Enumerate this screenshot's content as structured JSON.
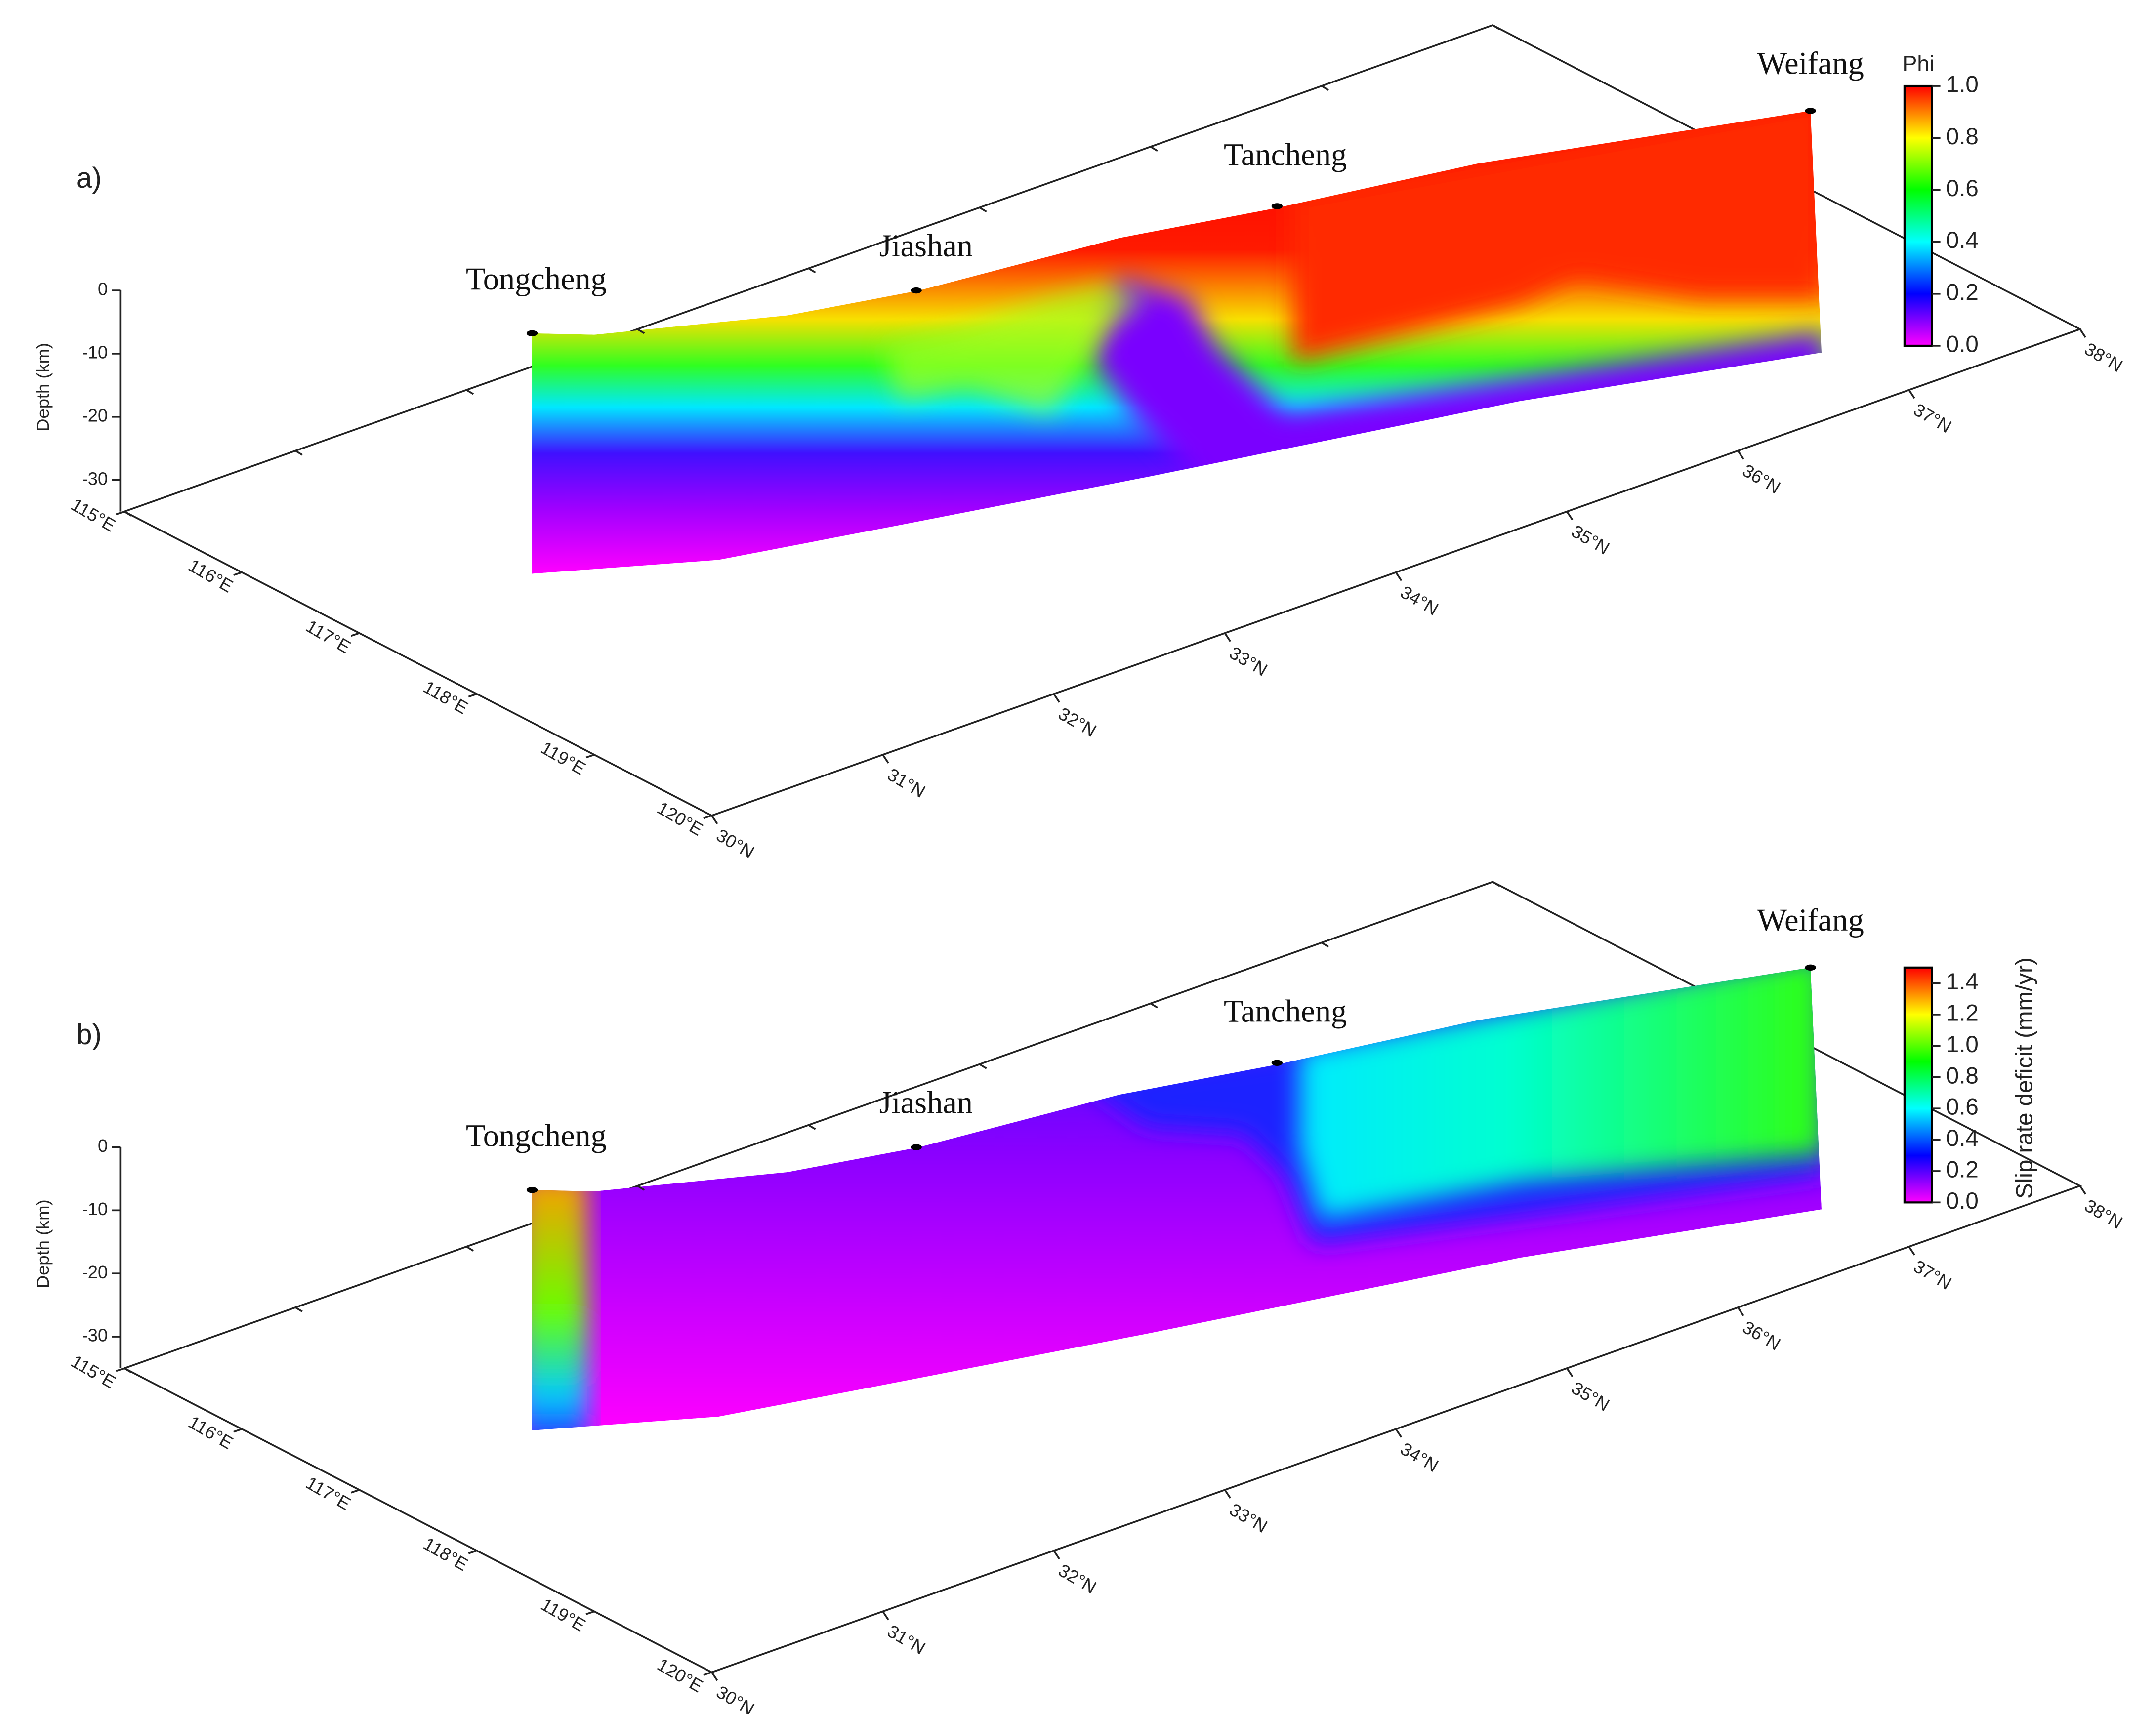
{
  "chart_data": [
    {
      "type": "fault-surface",
      "panel_label": "a)",
      "locations": [
        "Tongcheng",
        "Jiashan",
        "Tancheng",
        "Weifang"
      ],
      "colorbar_label": "Phi",
      "colormap": [
        "#ff00ff",
        "#0000ff",
        "#00ffff",
        "#00ff00",
        "#ffff00",
        "#ff0000"
      ],
      "clim": [
        0,
        1
      ],
      "cticks": [
        {
          "value": 0,
          "label": "0.0"
        },
        {
          "value": 0.2,
          "label": "0.2"
        },
        {
          "value": 0.4,
          "label": "0.4"
        },
        {
          "value": 0.6,
          "label": "0.6"
        },
        {
          "value": 0.8,
          "label": "0.8"
        },
        {
          "value": 1,
          "label": "1.0"
        }
      ],
      "zlabel": "Depth (km)",
      "zlim": [
        -35,
        0
      ],
      "zticks": [
        0,
        -10,
        -20,
        -30
      ],
      "xlim": [
        115,
        120
      ],
      "xticks": [
        {
          "value": 115,
          "label": "115°E"
        },
        {
          "value": 116,
          "label": "116°E"
        },
        {
          "value": 117,
          "label": "117°E"
        },
        {
          "value": 118,
          "label": "118°E"
        },
        {
          "value": 119,
          "label": "119°E"
        },
        {
          "value": 120,
          "label": "120°E"
        }
      ],
      "ylim": [
        30,
        38
      ],
      "yticks": [
        {
          "value": 30,
          "label": "30°N"
        },
        {
          "value": 31,
          "label": "31°N"
        },
        {
          "value": 32,
          "label": "32°N"
        },
        {
          "value": 33,
          "label": "33°N"
        },
        {
          "value": 34,
          "label": "34°N"
        },
        {
          "value": 35,
          "label": "35°N"
        },
        {
          "value": 36,
          "label": "36°N"
        },
        {
          "value": 37,
          "label": "37°N"
        },
        {
          "value": 38,
          "label": "38°N"
        }
      ]
    },
    {
      "type": "fault-surface",
      "panel_label": "b)",
      "locations": [
        "Tongcheng",
        "Jiashan",
        "Tancheng",
        "Weifang"
      ],
      "colorbar_label": "Slip rate deficit (mm/yr)",
      "colormap": [
        "#ff00ff",
        "#0000ff",
        "#00ffff",
        "#00ff00",
        "#ffff00",
        "#ff0000"
      ],
      "clim": [
        0,
        1.5
      ],
      "cticks": [
        {
          "value": 0,
          "label": "0.0"
        },
        {
          "value": 0.2,
          "label": "0.2"
        },
        {
          "value": 0.4,
          "label": "0.4"
        },
        {
          "value": 0.6,
          "label": "0.6"
        },
        {
          "value": 0.8,
          "label": "0.8"
        },
        {
          "value": 1,
          "label": "1.0"
        },
        {
          "value": 1.2,
          "label": "1.2"
        },
        {
          "value": 1.4,
          "label": "1.4"
        }
      ],
      "zlabel": "Depth (km)",
      "zlim": [
        -35,
        0
      ],
      "zticks": [
        0,
        -10,
        -20,
        -30
      ],
      "xlim": [
        115,
        120
      ],
      "xticks": [
        {
          "value": 115,
          "label": "115°E"
        },
        {
          "value": 116,
          "label": "116°E"
        },
        {
          "value": 117,
          "label": "117°E"
        },
        {
          "value": 118,
          "label": "118°E"
        },
        {
          "value": 119,
          "label": "119°E"
        },
        {
          "value": 120,
          "label": "120°E"
        }
      ],
      "ylim": [
        30,
        38
      ],
      "yticks": [
        {
          "value": 30,
          "label": "30°N"
        },
        {
          "value": 31,
          "label": "31°N"
        },
        {
          "value": 32,
          "label": "32°N"
        },
        {
          "value": 33,
          "label": "33°N"
        },
        {
          "value": 34,
          "label": "34°N"
        },
        {
          "value": 35,
          "label": "35°N"
        },
        {
          "value": 36,
          "label": "36°N"
        },
        {
          "value": 37,
          "label": "37°N"
        },
        {
          "value": 38,
          "label": "38°N"
        }
      ]
    }
  ]
}
